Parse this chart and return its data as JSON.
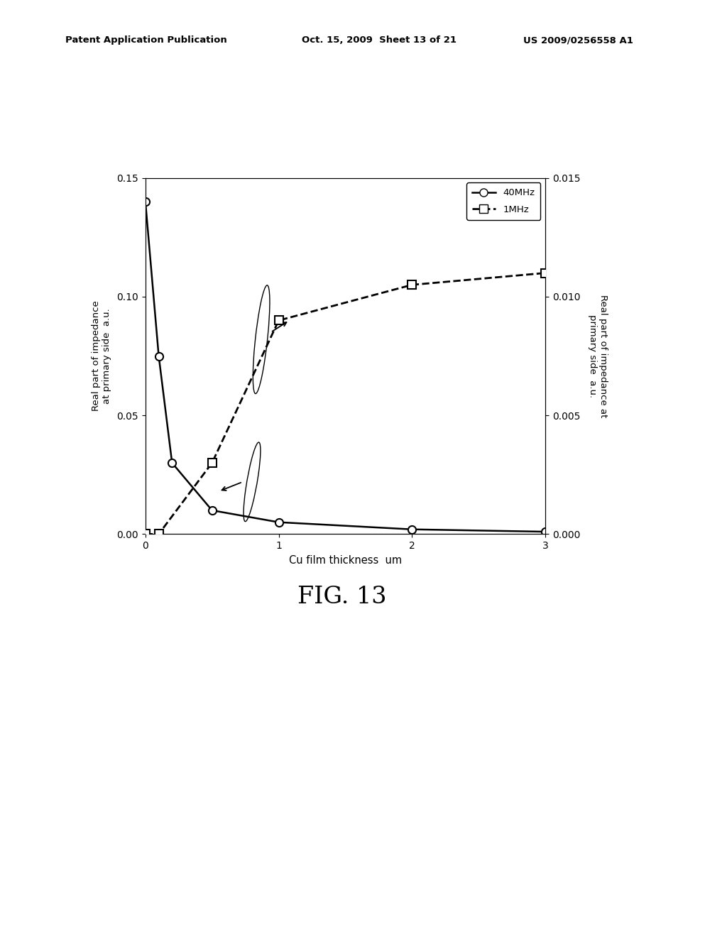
{
  "header_left": "Patent Application Publication",
  "header_mid": "Oct. 15, 2009  Sheet 13 of 21",
  "header_right": "US 2009/0256558 A1",
  "fig_label": "FIG. 13",
  "xlabel": "Cu film thickness  um",
  "ylabel_left": "Real part of impedance\nat primary side  a.u.",
  "ylabel_right": "Real part of impedance at\nprimary side  a.u.",
  "xlim": [
    0,
    3
  ],
  "ylim_left": [
    0,
    0.15
  ],
  "ylim_right": [
    0,
    0.015
  ],
  "xticks": [
    0,
    1,
    2,
    3
  ],
  "yticks_left": [
    0,
    0.05,
    0.1,
    0.15
  ],
  "yticks_right": [
    0,
    0.005,
    0.01,
    0.015
  ],
  "series_40MHz_x": [
    0,
    0.1,
    0.2,
    0.5,
    1.0,
    2.0,
    3.0
  ],
  "series_40MHz_y": [
    0.14,
    0.075,
    0.03,
    0.01,
    0.005,
    0.002,
    0.001
  ],
  "series_1MHz_x": [
    0,
    0.1,
    0.5,
    1.0,
    2.0,
    3.0
  ],
  "series_1MHz_y_right": [
    0.0,
    0.0,
    0.003,
    0.009,
    0.0105,
    0.011
  ],
  "background_color": "#ffffff"
}
